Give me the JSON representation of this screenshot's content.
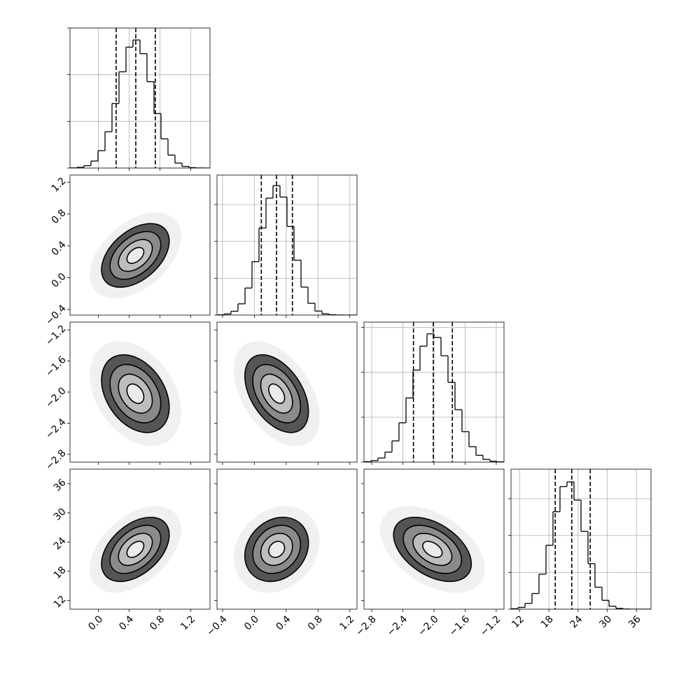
{
  "chart_data": {
    "type": "corner",
    "levels": [
      0.5,
      1,
      1.5,
      2
    ],
    "grid": true,
    "params": [
      {
        "lim": [
          -0.37,
          1.45
        ],
        "ticks": [
          {
            "value": 0,
            "label": "0.0"
          },
          0.4,
          0.8,
          1.2
        ],
        "mean": 0.48,
        "sd": 0.22,
        "quantiles": [
          0.23,
          0.485,
          0.739
        ],
        "bins": [
          -0.37,
          -0.279,
          -0.188,
          -0.097,
          -0.006,
          0.085,
          0.176,
          0.267,
          0.358,
          0.449,
          0.54,
          0.631,
          0.722,
          0.813,
          0.904,
          0.995,
          1.086,
          1.177,
          1.268,
          1.359,
          1.45
        ],
        "counts": [
          2,
          9,
          31,
          90,
          223,
          467,
          830,
          1237,
          1554,
          1646,
          1470,
          1110,
          700,
          375,
          167,
          64,
          21,
          5,
          1,
          0
        ],
        "hist_ylim": [
          0,
          1800
        ],
        "hist_yticks": [
          0,
          600,
          1200,
          1800
        ]
      },
      {
        "lim": [
          -0.47,
          1.29
        ],
        "ticks": [
          {
            "value": -0.4,
            "label": "−0.4"
          },
          {
            "value": 0,
            "label": "0.0"
          },
          0.4,
          0.8,
          1.2
        ],
        "mean": 0.28,
        "sd": 0.2,
        "quantiles": [
          0.087,
          0.278,
          0.478
        ],
        "bins": [
          -0.47,
          -0.382,
          -0.294,
          -0.206,
          -0.118,
          -0.03,
          0.058,
          0.146,
          0.234,
          0.322,
          0.41,
          0.498,
          0.586,
          0.674,
          0.762,
          0.85,
          0.938,
          1.026,
          1.114,
          1.202,
          1.29
        ],
        "counts": [
          3,
          15,
          52,
          153,
          367,
          725,
          1182,
          1587,
          1756,
          1601,
          1203,
          745,
          380,
          160,
          55,
          16,
          4,
          1,
          0,
          0
        ],
        "hist_ylim": [
          0,
          1900
        ],
        "hist_yticks": [
          0,
          500,
          1000,
          1500
        ]
      },
      {
        "lim": [
          -2.9,
          -1.1
        ],
        "ticks": [
          {
            "value": -2.8,
            "label": "−2.8"
          },
          {
            "value": -2.4,
            "label": "−2.4"
          },
          {
            "value": -2.0,
            "label": "−2.0"
          },
          {
            "value": -1.6,
            "label": "−1.6"
          },
          {
            "value": -1.2,
            "label": "−1.2"
          }
        ],
        "mean": -2.02,
        "sd": 0.25,
        "quantiles": [
          -2.264,
          -2.009,
          -1.764
        ],
        "bins": [
          -2.9,
          -2.81,
          -2.72,
          -2.63,
          -2.54,
          -2.45,
          -2.36,
          -2.27,
          -2.18,
          -2.09,
          -2.0,
          -1.91,
          -1.82,
          -1.73,
          -1.64,
          -1.55,
          -1.46,
          -1.37,
          -1.28,
          -1.19,
          -1.1
        ],
        "counts": [
          5,
          17,
          46,
          112,
          236,
          438,
          715,
          1025,
          1292,
          1429,
          1389,
          1185,
          889,
          584,
          339,
          172,
          76,
          30,
          10,
          3
        ],
        "hist_ylim": [
          0,
          1560
        ],
        "hist_yticks": [
          0,
          500,
          1000,
          1500
        ]
      },
      {
        "lim": [
          10.2,
          39.0
        ],
        "ticks": [
          12,
          18,
          24,
          30,
          36
        ],
        "mean": 22.5,
        "sd": 3.3,
        "quantiles": [
          19.3,
          22.7,
          26.5
        ],
        "bins": [
          10.2,
          11.64,
          13.08,
          14.52,
          15.96,
          17.4,
          18.84,
          20.28,
          21.72,
          23.16,
          24.6,
          26.04,
          27.48,
          28.92,
          30.36,
          31.8,
          33.24,
          34.68,
          36.12,
          37.56,
          39.0
        ],
        "counts": [
          6,
          24,
          78,
          213,
          475,
          867,
          1323,
          1664,
          1727,
          1480,
          1056,
          618,
          298,
          120,
          40,
          11,
          2,
          0,
          0,
          0
        ],
        "hist_ylim": [
          0,
          1900
        ],
        "hist_yticks": [
          0,
          500,
          1000,
          1500
        ]
      }
    ],
    "corr": [
      [
        0.45
      ],
      [
        -0.35,
        -0.45
      ],
      [
        0.45,
        0.2,
        -0.45
      ]
    ]
  }
}
